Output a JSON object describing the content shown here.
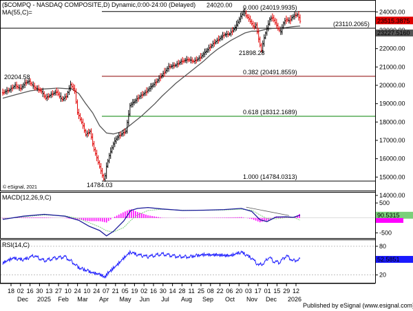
{
  "chart_data": [
    {
      "type": "candlestick",
      "title": "($COMPQ - NASDAQ COMPOSITE,D) Dynamic,0:00-24:00 (Delayed)",
      "indicator_label": "MA(55,C)=",
      "watermark": "© eSignal, 2021",
      "ylim": [
        14300,
        24500
      ],
      "yticks": [
        "14000.00",
        "15000.00",
        "16000.00",
        "17000.00",
        "18000.00",
        "19000.00",
        "20000.00",
        "21000.00",
        "22000.00",
        "23000.00",
        "24000.00"
      ],
      "last_value": "23515.3875",
      "ma_value": "23227.5160",
      "price_path": [
        [
          0,
          19600
        ],
        [
          10,
          19750
        ],
        [
          18,
          20000
        ],
        [
          25,
          19800
        ],
        [
          33,
          20150
        ],
        [
          38,
          20204.58
        ],
        [
          45,
          19900
        ],
        [
          55,
          19700
        ],
        [
          62,
          19300
        ],
        [
          70,
          19500
        ],
        [
          78,
          19650
        ],
        [
          85,
          19200
        ],
        [
          92,
          19400
        ],
        [
          98,
          20050
        ],
        [
          104,
          19700
        ],
        [
          108,
          18500
        ],
        [
          115,
          17900
        ],
        [
          120,
          17300
        ],
        [
          126,
          17500
        ],
        [
          132,
          16500
        ],
        [
          138,
          15800
        ],
        [
          143,
          15200
        ],
        [
          147,
          14784.03
        ],
        [
          150,
          15600
        ],
        [
          155,
          16300
        ],
        [
          160,
          16800
        ],
        [
          165,
          17150
        ],
        [
          172,
          17350
        ],
        [
          178,
          17500
        ],
        [
          184,
          18900
        ],
        [
          190,
          19100
        ],
        [
          198,
          19400
        ],
        [
          206,
          19600
        ],
        [
          214,
          19900
        ],
        [
          222,
          20200
        ],
        [
          230,
          20550
        ],
        [
          240,
          21000
        ],
        [
          250,
          21100
        ],
        [
          258,
          21300
        ],
        [
          268,
          21400
        ],
        [
          276,
          21300
        ],
        [
          285,
          21500
        ],
        [
          295,
          21900
        ],
        [
          305,
          22300
        ],
        [
          312,
          22500
        ],
        [
          320,
          22750
        ],
        [
          328,
          22800
        ],
        [
          336,
          23150
        ],
        [
          342,
          23600
        ],
        [
          348,
          24020
        ],
        [
          352,
          23800
        ],
        [
          358,
          23500
        ],
        [
          363,
          23150
        ],
        [
          366,
          23300
        ],
        [
          370,
          22500
        ],
        [
          374,
          21898.28
        ],
        [
          378,
          22600
        ],
        [
          382,
          23100
        ],
        [
          386,
          23600
        ],
        [
          390,
          23700
        ],
        [
          394,
          23400
        ],
        [
          398,
          23100
        ],
        [
          402,
          22900
        ],
        [
          406,
          23400
        ],
        [
          410,
          23600
        ],
        [
          414,
          23500
        ],
        [
          418,
          23700
        ],
        [
          422,
          23800
        ],
        [
          426,
          23850
        ],
        [
          430,
          23515.39
        ]
      ],
      "ma_path": [
        [
          0,
          19300
        ],
        [
          20,
          19500
        ],
        [
          40,
          19700
        ],
        [
          60,
          19800
        ],
        [
          80,
          19850
        ],
        [
          100,
          19800
        ],
        [
          110,
          19550
        ],
        [
          120,
          19000
        ],
        [
          130,
          18500
        ],
        [
          140,
          17800
        ],
        [
          150,
          17400
        ],
        [
          160,
          17350
        ],
        [
          170,
          17450
        ],
        [
          180,
          17700
        ],
        [
          190,
          18000
        ],
        [
          200,
          18300
        ],
        [
          210,
          18650
        ],
        [
          220,
          19000
        ],
        [
          230,
          19400
        ],
        [
          240,
          19750
        ],
        [
          250,
          20100
        ],
        [
          260,
          20400
        ],
        [
          270,
          20700
        ],
        [
          280,
          21000
        ],
        [
          290,
          21300
        ],
        [
          300,
          21650
        ],
        [
          310,
          21950
        ],
        [
          320,
          22200
        ],
        [
          330,
          22450
        ],
        [
          340,
          22650
        ],
        [
          350,
          22850
        ],
        [
          360,
          22950
        ],
        [
          370,
          22950
        ],
        [
          380,
          23050
        ],
        [
          390,
          23100
        ],
        [
          400,
          23100
        ],
        [
          410,
          23150
        ],
        [
          420,
          23200
        ],
        [
          430,
          23227.52
        ]
      ],
      "horizontal_lines": [
        {
          "value": 24019.9935,
          "label": "0.000 (24019.9935)",
          "color": "#000000"
        },
        {
          "value": 23110.2065,
          "label": "(23110.2065)",
          "color": "#000000"
        },
        {
          "value": 20491.8559,
          "label": "0.382 (20491.8559)",
          "color": "#8b0000"
        },
        {
          "value": 18312.1689,
          "label": "0.618 (18312.1689)",
          "color": "#008000"
        },
        {
          "value": 14784.0313,
          "label": "1.000 (14784.0313)",
          "color": "#000000"
        }
      ],
      "annotations": [
        "24020.00",
        "20204.58",
        "21898.28",
        "14784.03"
      ]
    },
    {
      "type": "line",
      "title": "MACD(12,26,9,C)",
      "ylim": [
        -650,
        800
      ],
      "yticks": [
        "500",
        "0",
        "-500"
      ],
      "last_value": "90.5315",
      "signal_last_value": "-71.84",
      "macd_path": [
        [
          0,
          -50
        ],
        [
          30,
          60
        ],
        [
          60,
          120
        ],
        [
          90,
          60
        ],
        [
          110,
          -80
        ],
        [
          125,
          -280
        ],
        [
          140,
          -420
        ],
        [
          150,
          -600
        ],
        [
          160,
          -450
        ],
        [
          175,
          -100
        ],
        [
          185,
          250
        ],
        [
          195,
          320
        ],
        [
          210,
          350
        ],
        [
          230,
          300
        ],
        [
          260,
          250
        ],
        [
          290,
          260
        ],
        [
          320,
          280
        ],
        [
          345,
          320
        ],
        [
          360,
          220
        ],
        [
          372,
          -60
        ],
        [
          382,
          -120
        ],
        [
          395,
          30
        ],
        [
          410,
          40
        ],
        [
          420,
          20
        ],
        [
          430,
          90.53
        ]
      ],
      "signal_path": [
        [
          0,
          -30
        ],
        [
          30,
          40
        ],
        [
          60,
          100
        ],
        [
          90,
          70
        ],
        [
          110,
          -20
        ],
        [
          125,
          -160
        ],
        [
          140,
          -300
        ],
        [
          150,
          -430
        ],
        [
          160,
          -470
        ],
        [
          175,
          -320
        ],
        [
          185,
          -80
        ],
        [
          195,
          100
        ],
        [
          210,
          250
        ],
        [
          230,
          290
        ],
        [
          260,
          260
        ],
        [
          290,
          255
        ],
        [
          320,
          265
        ],
        [
          345,
          290
        ],
        [
          360,
          260
        ],
        [
          372,
          100
        ],
        [
          382,
          -20
        ],
        [
          395,
          -30
        ],
        [
          410,
          10
        ],
        [
          420,
          20
        ],
        [
          430,
          -71.84
        ]
      ],
      "hist_color": "#ff00ff"
    },
    {
      "type": "line",
      "title": "RSI(14,C)",
      "ylim": [
        5,
        90
      ],
      "yticks": [
        "80",
        "50",
        "20"
      ],
      "last_value": "52.5851",
      "rsi_path": [
        [
          0,
          45
        ],
        [
          15,
          55
        ],
        [
          30,
          52
        ],
        [
          45,
          60
        ],
        [
          60,
          50
        ],
        [
          75,
          55
        ],
        [
          90,
          58
        ],
        [
          100,
          48
        ],
        [
          110,
          35
        ],
        [
          120,
          30
        ],
        [
          130,
          25
        ],
        [
          140,
          22
        ],
        [
          147,
          15
        ],
        [
          155,
          28
        ],
        [
          165,
          40
        ],
        [
          175,
          55
        ],
        [
          185,
          68
        ],
        [
          195,
          62
        ],
        [
          210,
          58
        ],
        [
          230,
          64
        ],
        [
          250,
          59
        ],
        [
          270,
          58
        ],
        [
          290,
          63
        ],
        [
          310,
          62
        ],
        [
          330,
          60
        ],
        [
          345,
          68
        ],
        [
          352,
          62
        ],
        [
          360,
          55
        ],
        [
          370,
          40
        ],
        [
          378,
          45
        ],
        [
          385,
          58
        ],
        [
          392,
          48
        ],
        [
          400,
          46
        ],
        [
          410,
          60
        ],
        [
          420,
          50
        ],
        [
          430,
          52.59
        ]
      ]
    }
  ],
  "x_axis": {
    "day_ticks": [
      "18",
      "02",
      "16",
      "30",
      "13",
      "27",
      "10",
      "24",
      "10",
      "24",
      "07",
      "21",
      "05",
      "19",
      "02",
      "16",
      "30",
      "14",
      "28",
      "11",
      "25",
      "08",
      "22",
      "06",
      "20",
      "03",
      "17",
      "01",
      "15",
      "29",
      "12"
    ],
    "month_ticks": [
      "Dec",
      "2025",
      "Feb",
      "Mar",
      "Apr",
      "May",
      "Jun",
      "Jul",
      "Aug",
      "Sep",
      "Oct",
      "Nov",
      "Dec",
      "2026"
    ]
  },
  "footer": "Published by eSignal (www.esignal.com)"
}
